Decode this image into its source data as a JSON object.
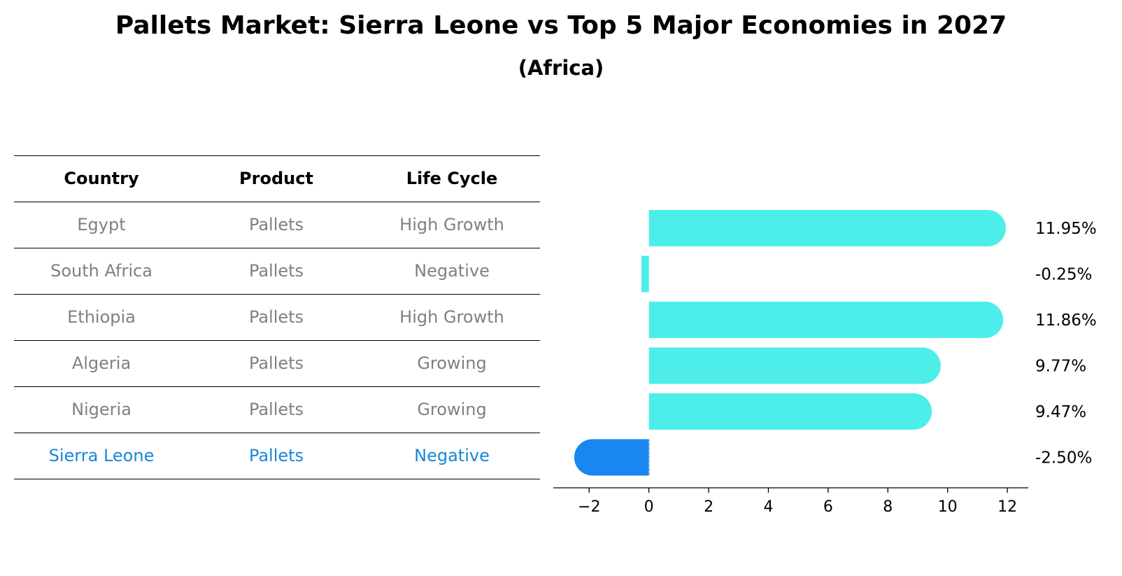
{
  "title": "Pallets Market: Sierra Leone vs Top 5 Major Economies in 2027",
  "subtitle": "(Africa)",
  "table": {
    "headers": [
      "Country",
      "Product",
      "Life Cycle"
    ],
    "rows": [
      [
        "Egypt",
        "Pallets",
        "High Growth"
      ],
      [
        "South Africa",
        "Pallets",
        "Negative"
      ],
      [
        "Ethiopia",
        "Pallets",
        "High Growth"
      ],
      [
        "Algeria",
        "Pallets",
        "Growing"
      ],
      [
        "Nigeria",
        "Pallets",
        "Growing"
      ],
      [
        "Sierra Leone",
        "Pallets",
        "Negative"
      ]
    ]
  },
  "chart_data": {
    "type": "bar",
    "orientation": "horizontal",
    "categories": [
      "Egypt",
      "South Africa",
      "Ethiopia",
      "Algeria",
      "Nigeria",
      "Sierra Leone"
    ],
    "values": [
      11.95,
      -0.25,
      11.86,
      9.77,
      9.47,
      -2.5
    ],
    "labels": [
      "11.95%",
      "-0.25%",
      "11.86%",
      "9.77%",
      "9.47%",
      "-2.50%"
    ],
    "highlight": "Sierra Leone",
    "xlim": [
      -3.2,
      12.7
    ],
    "xticks": [
      -2,
      0,
      2,
      4,
      6,
      8,
      10,
      12
    ],
    "xtick_labels": [
      "−2",
      "0",
      "2",
      "4",
      "6",
      "8",
      "10",
      "12"
    ],
    "colors": {
      "default": "#4deeea",
      "highlight": "#1a86f0"
    }
  }
}
